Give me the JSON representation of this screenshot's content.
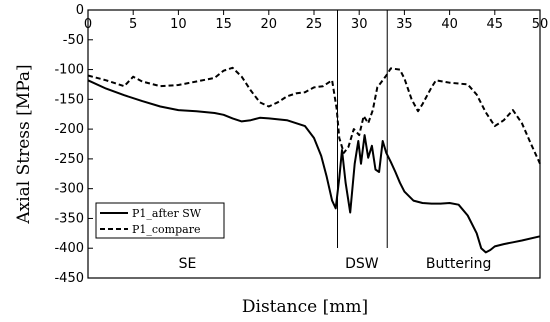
{
  "chart_data": {
    "type": "line",
    "title": "",
    "xlabel": "Distance [mm]",
    "ylabel": "Axial Stress [MPa]",
    "xlim": [
      0,
      50
    ],
    "ylim": [
      -450,
      0
    ],
    "x_ticks": [
      "0",
      "5",
      "10",
      "15",
      "20",
      "25",
      "30",
      "35",
      "40",
      "45",
      "50"
    ],
    "y_ticks": [
      "0",
      "-50",
      "-100",
      "-150",
      "-200",
      "-250",
      "-300",
      "-350",
      "-400",
      "-450"
    ],
    "grid": false,
    "legend_position": "bottom-left",
    "series": [
      {
        "name": "P1_after SW",
        "style": "solid",
        "points": [
          [
            0,
            -118
          ],
          [
            2,
            -132
          ],
          [
            4,
            -143
          ],
          [
            6,
            -153
          ],
          [
            8,
            -162
          ],
          [
            10,
            -168
          ],
          [
            12,
            -170
          ],
          [
            14,
            -173
          ],
          [
            15,
            -176
          ],
          [
            16,
            -182
          ],
          [
            17,
            -187
          ],
          [
            18,
            -185
          ],
          [
            19,
            -181
          ],
          [
            20,
            -182
          ],
          [
            22,
            -185
          ],
          [
            24,
            -195
          ],
          [
            25,
            -215
          ],
          [
            25.8,
            -245
          ],
          [
            26.4,
            -280
          ],
          [
            27,
            -320
          ],
          [
            27.4,
            -333
          ],
          [
            27.8,
            -282
          ],
          [
            28.1,
            -235
          ],
          [
            28.5,
            -290
          ],
          [
            29,
            -340
          ],
          [
            29.5,
            -258
          ],
          [
            29.9,
            -220
          ],
          [
            30.2,
            -258
          ],
          [
            30.6,
            -210
          ],
          [
            31,
            -248
          ],
          [
            31.4,
            -228
          ],
          [
            31.8,
            -268
          ],
          [
            32.2,
            -272
          ],
          [
            32.6,
            -220
          ],
          [
            33.0,
            -240
          ],
          [
            33.5,
            -255
          ],
          [
            34,
            -272
          ],
          [
            34.5,
            -290
          ],
          [
            35,
            -305
          ],
          [
            36,
            -320
          ],
          [
            37,
            -324
          ],
          [
            38,
            -325
          ],
          [
            39,
            -325
          ],
          [
            40,
            -324
          ],
          [
            41,
            -327
          ],
          [
            42,
            -345
          ],
          [
            43,
            -375
          ],
          [
            43.5,
            -400
          ],
          [
            44,
            -407
          ],
          [
            44.5,
            -403
          ],
          [
            45,
            -397
          ],
          [
            46,
            -393
          ],
          [
            47,
            -390
          ],
          [
            48,
            -387
          ],
          [
            50,
            -380
          ]
        ]
      },
      {
        "name": "P1_compare",
        "style": "dashed",
        "points": [
          [
            0,
            -110
          ],
          [
            2,
            -118
          ],
          [
            4,
            -128
          ],
          [
            5,
            -112
          ],
          [
            6,
            -120
          ],
          [
            8,
            -128
          ],
          [
            10,
            -126
          ],
          [
            12,
            -120
          ],
          [
            14,
            -114
          ],
          [
            15,
            -102
          ],
          [
            16,
            -97
          ],
          [
            17,
            -112
          ],
          [
            18,
            -135
          ],
          [
            19,
            -155
          ],
          [
            20,
            -162
          ],
          [
            21,
            -155
          ],
          [
            22,
            -145
          ],
          [
            23,
            -140
          ],
          [
            24,
            -138
          ],
          [
            25,
            -130
          ],
          [
            26,
            -128
          ],
          [
            27,
            -118
          ],
          [
            27.5,
            -165
          ],
          [
            27.8,
            -215
          ],
          [
            28.3,
            -240
          ],
          [
            28.8,
            -230
          ],
          [
            29.4,
            -200
          ],
          [
            30,
            -210
          ],
          [
            30.5,
            -178
          ],
          [
            31,
            -190
          ],
          [
            31.5,
            -168
          ],
          [
            32,
            -130
          ],
          [
            32.5,
            -120
          ],
          [
            33,
            -110
          ],
          [
            33.5,
            -98
          ],
          [
            34.5,
            -100
          ],
          [
            35,
            -115
          ],
          [
            35.8,
            -150
          ],
          [
            36.5,
            -170
          ],
          [
            37,
            -158
          ],
          [
            38,
            -130
          ],
          [
            38.5,
            -118
          ],
          [
            40,
            -122
          ],
          [
            42,
            -125
          ],
          [
            43,
            -142
          ],
          [
            44,
            -172
          ],
          [
            45,
            -195
          ],
          [
            46,
            -185
          ],
          [
            47,
            -168
          ],
          [
            48,
            -190
          ],
          [
            49,
            -225
          ],
          [
            50,
            -258
          ]
        ]
      }
    ],
    "vertical_lines": [
      27.6,
      33.1
    ],
    "regions": [
      {
        "label": "SE",
        "x": 11
      },
      {
        "label": "DSW",
        "x": 30.3
      },
      {
        "label": "Buttering",
        "x": 41
      }
    ]
  }
}
